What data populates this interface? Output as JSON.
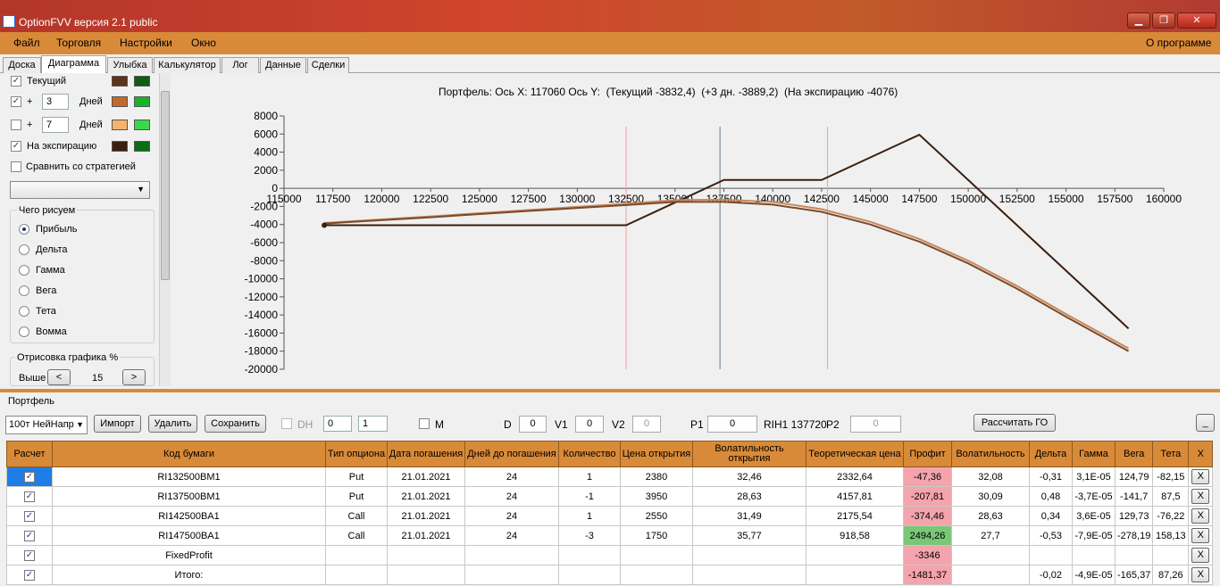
{
  "window": {
    "title": "OptionFVV версия 2.1 public",
    "min": "▁",
    "max": "❐",
    "close": "✕"
  },
  "menu": {
    "file": "Файл",
    "trade": "Торговля",
    "settings": "Настройки",
    "window": "Окно",
    "about": "О программе"
  },
  "tabs": [
    "Доска",
    "Диаграмма",
    "Улыбка",
    "Калькулятор",
    "Лог",
    "Данные",
    "Сделки"
  ],
  "left": {
    "current": "Текущий",
    "plus": "+",
    "days_value_1": "3",
    "days_value_2": "7",
    "days": "Дней",
    "expiry": "На экспирацию",
    "compare": "Сравнить со стратегией",
    "draw_group": "Чего рисуем",
    "radios": [
      "Прибыль",
      "Дельта",
      "Гамма",
      "Вега",
      "Тета",
      "Вомма"
    ],
    "render_group": "Отрисовка графика %",
    "above": "Выше",
    "render_value": "15",
    "prev": "<",
    "next": ">",
    "colors": {
      "current_a": "#5e3418",
      "current_b": "#0b5e12",
      "d3_a": "#c26a2c",
      "d3_b": "#19b32a",
      "d7_a": "#f6b46a",
      "d7_b": "#39d84a",
      "exp_a": "#3a1f0e",
      "exp_b": "#0c6e14"
    }
  },
  "chart_data": {
    "type": "line",
    "title": "Портфель: Ось X: 117060 Ось Y:  (Текущий -3832,4)  (+3 дн. -3889,2)  (На экспирацию -4076)",
    "x_ticks": [
      "115000",
      "117500",
      "120000",
      "122500",
      "125000",
      "127500",
      "130000",
      "132500",
      "135000",
      "137500",
      "140000",
      "142500",
      "145000",
      "147500",
      "150000",
      "152500",
      "155000",
      "157500",
      "160000"
    ],
    "y_ticks": [
      "8000",
      "6000",
      "4000",
      "2000",
      "0",
      "-2000",
      "-4000",
      "-6000",
      "-8000",
      "-10000",
      "-12000",
      "-14000",
      "-16000",
      "-18000",
      "-20000"
    ],
    "xlim": [
      115000,
      160000
    ],
    "ylim": [
      -20000,
      8000
    ],
    "vlines": [
      132500,
      137300,
      142800
    ],
    "series": [
      {
        "color": "#3a1f0e",
        "x": [
          117060,
          132500,
          137500,
          142500,
          147500,
          158200
        ],
        "y": [
          -4076,
          -4076,
          924,
          924,
          5924,
          -15500
        ]
      },
      {
        "color": "#c9885a",
        "x": [
          117060,
          122500,
          127500,
          132500,
          135000,
          137500,
          140000,
          142500,
          145000,
          147500,
          150000,
          152500,
          155000,
          158200
        ],
        "y": [
          -3832,
          -3100,
          -2400,
          -1700,
          -1300,
          -1250,
          -1500,
          -2300,
          -3700,
          -5600,
          -8000,
          -10800,
          -13900,
          -17700
        ]
      },
      {
        "color": "#7a4a2a",
        "x": [
          117060,
          122500,
          127500,
          132500,
          135000,
          137500,
          140000,
          142500,
          145000,
          147500,
          150000,
          152500,
          155000,
          158200
        ],
        "y": [
          -3889,
          -3200,
          -2500,
          -1850,
          -1500,
          -1500,
          -1800,
          -2600,
          -4000,
          -5900,
          -8300,
          -11100,
          -14200,
          -18000
        ]
      }
    ]
  },
  "portfolio": {
    "label": "Портфель",
    "selector": "100т НейНапр",
    "import": "Импорт",
    "delete": "Удалить",
    "save": "Сохранить",
    "dh": "DH",
    "dh_spin1": "0",
    "dh_spin2": "1",
    "m": "M",
    "d_label": "D",
    "d_value": "0",
    "v1_label": "V1",
    "v1_value": "0",
    "v2_label": "V2",
    "v2_value": "0",
    "p1_label": "P1",
    "p1_value": "0",
    "rih": "RIH1 137720",
    "p2_label": "P2",
    "p2_value": "0",
    "calc": "Рассчитать ГО",
    "minimize": "_"
  },
  "table": {
    "headers": [
      "Расчет",
      "Код бумаги",
      "Тип опциона",
      "Дата погашения",
      "Дней до погашения",
      "Количество",
      "Цена открытия",
      "Волатильность открытия",
      "Теоретическая цена",
      "Профит",
      "Волатильность",
      "Дельта",
      "Гамма",
      "Вега",
      "Тета",
      "X"
    ],
    "rows": [
      [
        "✓",
        "RI132500BM1",
        "Put",
        "21.01.2021",
        "24",
        "1",
        "2380",
        "32,46",
        "2332,64",
        "-47,36",
        "32,08",
        "-0,31",
        "3,1E-05",
        "124,79",
        "-82,15",
        "X"
      ],
      [
        "✓",
        "RI137500BM1",
        "Put",
        "21.01.2021",
        "24",
        "-1",
        "3950",
        "28,63",
        "4157,81",
        "-207,81",
        "30,09",
        "0,48",
        "-3,7E-05",
        "-141,7",
        "87,5",
        "X"
      ],
      [
        "✓",
        "RI142500BA1",
        "Call",
        "21.01.2021",
        "24",
        "1",
        "2550",
        "31,49",
        "2175,54",
        "-374,46",
        "28,63",
        "0,34",
        "3,6E-05",
        "129,73",
        "-76,22",
        "X"
      ],
      [
        "✓",
        "RI147500BA1",
        "Call",
        "21.01.2021",
        "24",
        "-3",
        "1750",
        "35,77",
        "918,58",
        "2494,26",
        "27,7",
        "-0,53",
        "-7,9E-05",
        "-278,19",
        "158,13",
        "X"
      ],
      [
        "✓",
        "FixedProfit",
        "",
        "",
        "",
        "",
        "",
        "",
        "",
        "-3346",
        "",
        "",
        "",
        "",
        "",
        "X"
      ],
      [
        "✓",
        "Итого:",
        "",
        "",
        "",
        "",
        "",
        "",
        "",
        "-1481,37",
        "",
        "-0,02",
        "-4,9E-05",
        "-165,37",
        "87,26",
        "X"
      ]
    ],
    "profit_colors": [
      "red",
      "red",
      "red",
      "green",
      "red",
      "red"
    ]
  }
}
